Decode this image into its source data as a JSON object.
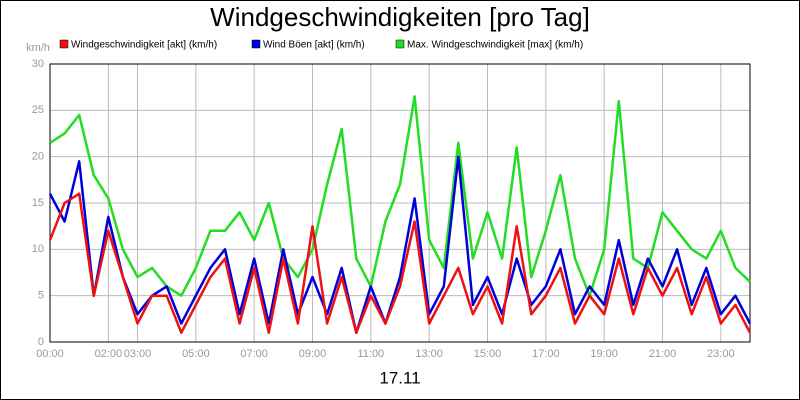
{
  "chart_data": {
    "type": "line",
    "title": "Windgeschwindigkeiten [pro Tag]",
    "y_unit": "km/h",
    "x_label": "17.11",
    "x": [
      0,
      0.5,
      1,
      1.5,
      2,
      2.5,
      3,
      3.5,
      4,
      4.5,
      5,
      5.5,
      6,
      6.5,
      7,
      7.5,
      8,
      8.5,
      9,
      9.5,
      10,
      10.5,
      11,
      11.5,
      12,
      12.5,
      13,
      13.5,
      14,
      14.5,
      15,
      15.5,
      16,
      16.5,
      17,
      17.5,
      18,
      18.5,
      19,
      19.5,
      20,
      20.5,
      21,
      21.5,
      22,
      22.5,
      23,
      23.5,
      24
    ],
    "series": [
      {
        "name": "Windgeschwindigkeit [akt] (km/h)",
        "color": "#ee1111",
        "values": [
          11,
          15,
          16,
          5,
          12,
          7,
          2,
          5,
          5,
          1,
          4,
          7,
          9,
          2,
          8,
          1,
          9,
          2,
          12.5,
          2,
          7,
          1,
          5,
          2,
          6,
          13,
          2,
          5,
          8,
          3,
          6,
          2,
          12.5,
          3,
          5,
          8,
          2,
          5,
          3,
          9,
          3,
          8,
          5,
          8,
          3,
          7,
          2,
          4,
          1
        ]
      },
      {
        "name": "Wind Böen [akt] (km/h)",
        "color": "#0000dd",
        "values": [
          16,
          13,
          19.5,
          5,
          13.5,
          7,
          3,
          5,
          6,
          2,
          5,
          8,
          10,
          3,
          9,
          2,
          10,
          3,
          7,
          3,
          8,
          1,
          6,
          2,
          7,
          15.5,
          3,
          6,
          20,
          4,
          7,
          3,
          9,
          4,
          6,
          10,
          3,
          6,
          4,
          11,
          4,
          9,
          6,
          10,
          4,
          8,
          3,
          5,
          2
        ]
      },
      {
        "name": "Max. Windgeschwindigkeit [max] (km/h)",
        "color": "#22dd22",
        "values": [
          21.5,
          22.5,
          24.5,
          18,
          15.5,
          10,
          7,
          8,
          6,
          5,
          8,
          12,
          12,
          14,
          11,
          15,
          9,
          7,
          10,
          17,
          23,
          9,
          6,
          13,
          17,
          26.5,
          11,
          8,
          21.5,
          9,
          14,
          9,
          21,
          7,
          12,
          18,
          9,
          5,
          10,
          26,
          9,
          8,
          14,
          12,
          10,
          9,
          12,
          8,
          6.5
        ]
      }
    ],
    "xlim": [
      0,
      24
    ],
    "xticks": [
      {
        "value": 0,
        "label": "00:00"
      },
      {
        "value": 2,
        "label": "02:00"
      },
      {
        "value": 3,
        "label": "03:00"
      },
      {
        "value": 5,
        "label": "05:00"
      },
      {
        "value": 7,
        "label": "07:00"
      },
      {
        "value": 9,
        "label": "09:00"
      },
      {
        "value": 11,
        "label": "11:00"
      },
      {
        "value": 13,
        "label": "13:00"
      },
      {
        "value": 15,
        "label": "15:00"
      },
      {
        "value": 17,
        "label": "17:00"
      },
      {
        "value": 19,
        "label": "19:00"
      },
      {
        "value": 21,
        "label": "21:00"
      },
      {
        "value": 23,
        "label": "23:00"
      }
    ],
    "ylim": [
      0,
      30
    ],
    "yticks": [
      0,
      5,
      10,
      15,
      20,
      25,
      30
    ],
    "grid": true
  }
}
